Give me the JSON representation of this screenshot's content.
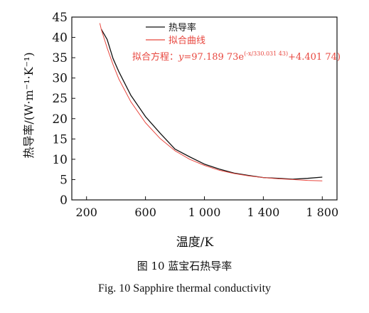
{
  "chart_data": {
    "type": "line",
    "xlabel": "温度/K",
    "ylabel": "热导率/(W·m⁻¹·K⁻¹)",
    "xlim": [
      100,
      1900
    ],
    "ylim": [
      0,
      45
    ],
    "xticks": [
      200,
      600,
      1000,
      1400,
      1800
    ],
    "xtick_labels": [
      "200",
      "600",
      "1 000",
      "1 400",
      "1 800"
    ],
    "yticks": [
      0,
      5,
      10,
      15,
      20,
      25,
      30,
      35,
      40,
      45
    ],
    "ytick_labels": [
      "0",
      "5",
      "10",
      "15",
      "20",
      "25",
      "30",
      "35",
      "40",
      "45"
    ],
    "legend_position": "top-right",
    "series": [
      {
        "name": "热导率",
        "color": "#111111",
        "x": [
          300,
          340,
          380,
          420,
          500,
          600,
          700,
          800,
          900,
          1000,
          1100,
          1200,
          1300,
          1400,
          1500,
          1600,
          1700,
          1800
        ],
        "y": [
          42.0,
          39.5,
          34.8,
          31.5,
          25.8,
          20.5,
          16.4,
          12.5,
          10.6,
          8.8,
          7.6,
          6.6,
          6.0,
          5.5,
          5.3,
          5.1,
          5.3,
          5.6
        ]
      },
      {
        "name": "拟合曲线",
        "color": "#e8473f",
        "x": [
          290,
          300,
          340,
          380,
          420,
          500,
          600,
          700,
          800,
          900,
          1000,
          1100,
          1200,
          1300,
          1400,
          1500,
          1600,
          1700,
          1800
        ],
        "y": [
          43.5,
          42.0,
          37.4,
          33.3,
          29.7,
          24.2,
          19.0,
          15.1,
          12.1,
          10.0,
          8.5,
          7.3,
          6.5,
          5.9,
          5.5,
          5.2,
          5.0,
          4.8,
          4.7
        ]
      }
    ],
    "annotation": {
      "label": "拟合方程：",
      "y_var": "y",
      "eq_main": "=97.189 73e",
      "exponent": "(-x/330.031 43)",
      "eq_tail": "+4.401 74)",
      "color": "#e8473f"
    }
  },
  "caption": {
    "cn": "图 10    蓝宝石热导率",
    "en": "Fig. 10    Sapphire thermal conductivity"
  }
}
